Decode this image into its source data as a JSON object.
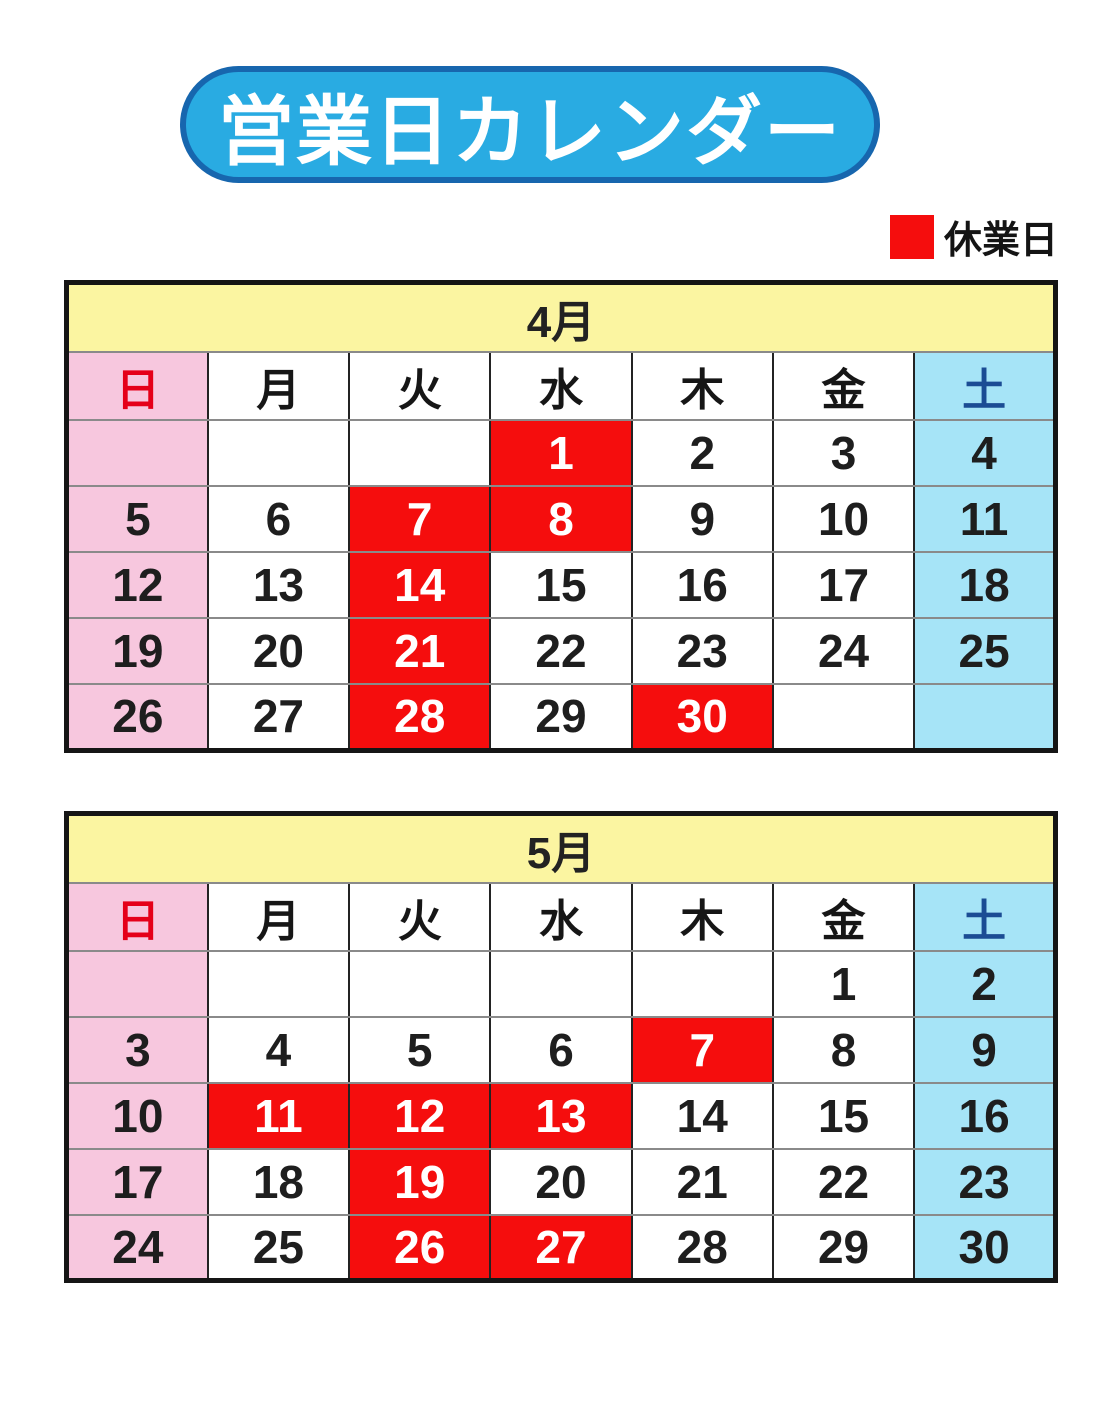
{
  "title": "営業日カレンダー",
  "legend": {
    "label": "休業日"
  },
  "weekday_labels": [
    "日",
    "月",
    "火",
    "水",
    "木",
    "金",
    "土"
  ],
  "months": [
    {
      "name": "4月",
      "weeks": [
        [
          "",
          "",
          "",
          "1",
          "2",
          "3",
          "4"
        ],
        [
          "5",
          "6",
          "7",
          "8",
          "9",
          "10",
          "11"
        ],
        [
          "12",
          "13",
          "14",
          "15",
          "16",
          "17",
          "18"
        ],
        [
          "19",
          "20",
          "21",
          "22",
          "23",
          "24",
          "25"
        ],
        [
          "26",
          "27",
          "28",
          "29",
          "30",
          "",
          ""
        ]
      ],
      "closed": [
        "1",
        "7",
        "8",
        "14",
        "21",
        "28",
        "30"
      ]
    },
    {
      "name": "5月",
      "weeks": [
        [
          "",
          "",
          "",
          "",
          "",
          "1",
          "2"
        ],
        [
          "3",
          "4",
          "5",
          "6",
          "7",
          "8",
          "9"
        ],
        [
          "10",
          "11",
          "12",
          "13",
          "14",
          "15",
          "16"
        ],
        [
          "17",
          "18",
          "19",
          "20",
          "21",
          "22",
          "23"
        ],
        [
          "24",
          "25",
          "26",
          "27",
          "28",
          "29",
          "30"
        ]
      ],
      "closed": [
        "7",
        "11",
        "12",
        "13",
        "19",
        "26",
        "27"
      ]
    }
  ],
  "colors": {
    "title_bg": "#29abe2",
    "title_border": "#1766ae",
    "month_header_bg": "#fbf5a1",
    "sun_bg": "#f7c7de",
    "sat_bg": "#a6e4f7",
    "closed_bg": "#f50d0d",
    "sun_text": "#e50019",
    "sat_text": "#1b4c94"
  }
}
